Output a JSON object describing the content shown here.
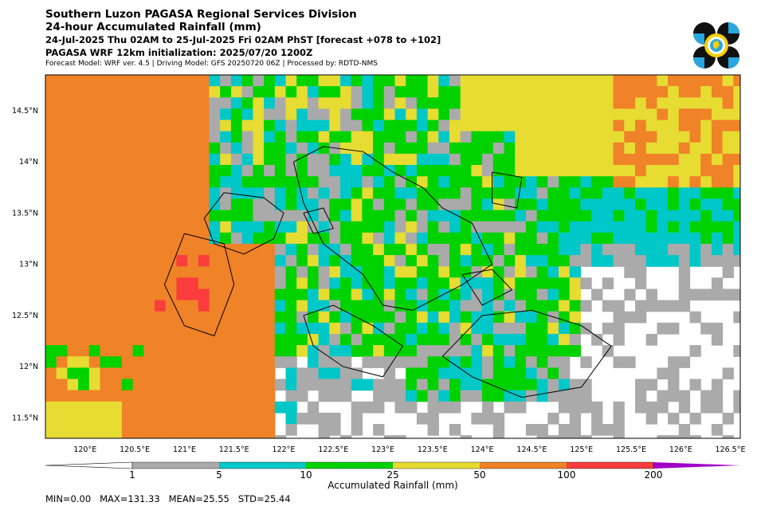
{
  "header": {
    "title": "Southern Luzon PAGASA Regional Services Division",
    "subtitle": "24-hour Accumulated Rainfall (mm)",
    "period": "24-Jul-2025 Thu 02AM to 25-Jul-2025 Fri 02AM PhST [forecast +078 to +102]",
    "init": "PAGASA WRF 12km initialization: 2025/07/20 1200Z",
    "model": "Forecast Model: WRF ver. 4.5 | Driving Model: GFS 20250720 06Z | Processed by: RDTD-NMS"
  },
  "logo": {
    "icon": "pagasa-seal-icon",
    "colors": [
      "#111111",
      "#29a8e0",
      "#f5d000",
      "#ffffff"
    ]
  },
  "map": {
    "lon_ticks": [
      "120°E",
      "120.5°E",
      "121°E",
      "121.5°E",
      "122°E",
      "122.5°E",
      "123°E",
      "123.5°E",
      "124°E",
      "124.5°E",
      "125°E",
      "125.5°E",
      "126°E",
      "126.5°E"
    ],
    "lat_ticks": [
      "14.5°N",
      "14°N",
      "13.5°N",
      "13°N",
      "12.5°N",
      "12°N",
      "11.5°N"
    ],
    "lon_range": [
      119.6,
      126.6
    ],
    "lat_range": [
      11.3,
      14.85
    ]
  },
  "colorbar": {
    "label": "Accumulated Rainfall (mm)",
    "ticks": [
      "1",
      "5",
      "10",
      "25",
      "50",
      "100",
      "200"
    ],
    "colors": [
      "#ffffff",
      "#aaaaaa",
      "#00c8c8",
      "#00d200",
      "#e6dc32",
      "#f08228",
      "#fa3c3c",
      "#a000c8"
    ]
  },
  "stats": "MIN=0.00   MAX=131.33   MEAN=25.55   STD=25.44"
}
